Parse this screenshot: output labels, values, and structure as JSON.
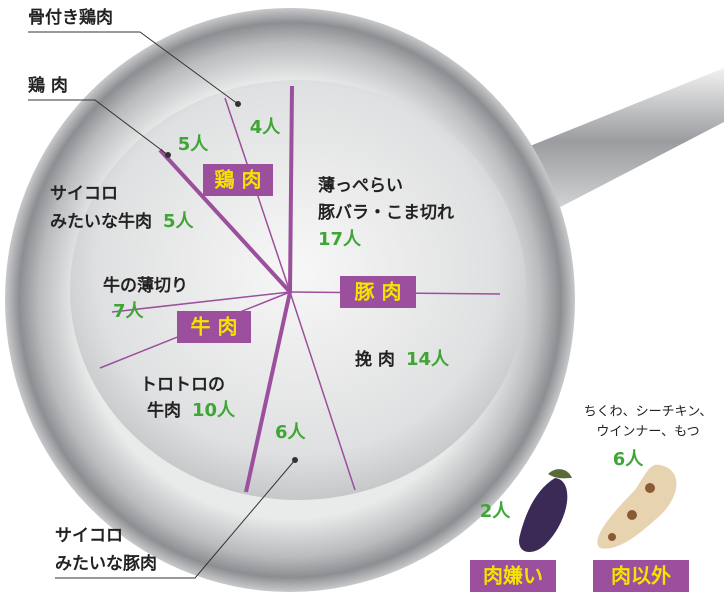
{
  "categories": {
    "chicken": "鶏 肉",
    "pork": "豚 肉",
    "beef": "牛 肉"
  },
  "slices": [
    {
      "name": [
        "骨付き鶏肉"
      ],
      "count": "4人"
    },
    {
      "name": [
        "鶏 肉"
      ],
      "count": "5人"
    },
    {
      "name": [
        "サイコロ",
        "みたいな牛肉"
      ],
      "count": "5人"
    },
    {
      "name": [
        "薄っぺらい",
        "豚バラ・こま切れ"
      ],
      "count": "17人"
    },
    {
      "name": [
        "牛の薄切り"
      ],
      "count": "7人"
    },
    {
      "name": [
        "挽 肉"
      ],
      "count": "14人"
    },
    {
      "name": [
        "トロトロの",
        "牛肉"
      ],
      "count": "10人"
    },
    {
      "name": [
        "サイコロ",
        "みたいな豚肉"
      ],
      "count": "6人"
    }
  ],
  "extras": [
    {
      "label": "肉嫌い",
      "count": "2人"
    },
    {
      "label": "肉以外",
      "name": [
        "ちくわ、シーチキン、",
        "ウインナー、もつ"
      ],
      "count": "6人"
    }
  ]
}
